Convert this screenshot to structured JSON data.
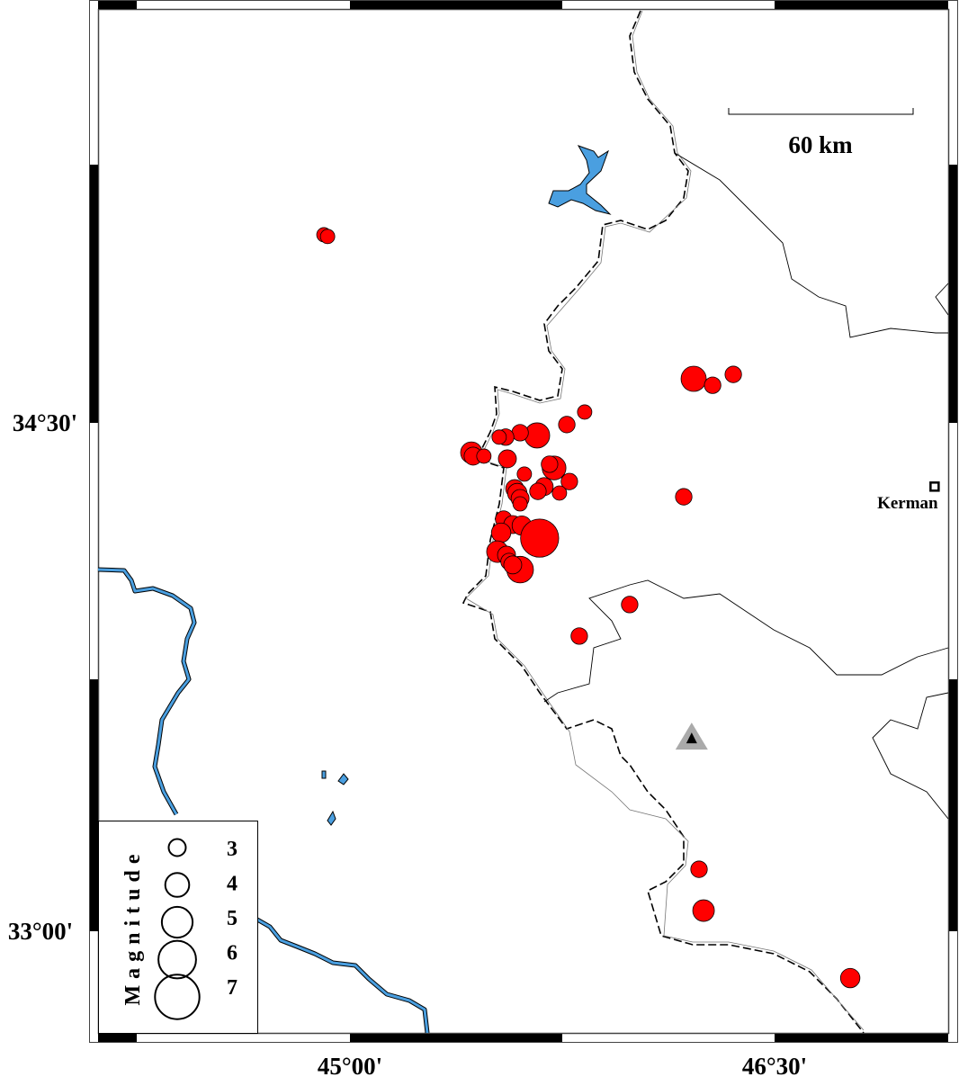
{
  "map": {
    "axes": {
      "lat_labels": [
        {
          "lat": 34.5,
          "text": "34°30'"
        },
        {
          "lat": 33.0,
          "text": "33°00'"
        }
      ],
      "lon_labels": [
        {
          "lon": 45.0,
          "text": "45°00'"
        },
        {
          "lon": 46.5,
          "text": "46°30'"
        }
      ]
    },
    "scale_bar": {
      "label": "60 km",
      "length_km": 60
    },
    "city": {
      "name": "Kerman",
      "lon": 47.065,
      "lat": 34.312,
      "symbol": "square"
    },
    "station": {
      "lon": 46.207,
      "lat": 33.568,
      "symbol": "triangle"
    },
    "legend": {
      "title": "Magnitude",
      "entries": [
        {
          "mag": 3,
          "label": "3"
        },
        {
          "mag": 4,
          "label": "4"
        },
        {
          "mag": 5,
          "label": "5"
        },
        {
          "mag": 6,
          "label": "6"
        },
        {
          "mag": 7,
          "label": "7"
        }
      ]
    },
    "colors": {
      "event_fill": "#ff0000",
      "water": "#4a9fe0",
      "station": "#aaaaaa",
      "border": "#000000"
    },
    "events": [
      [
        44.908,
        35.055,
        2.5
      ],
      [
        44.921,
        35.05,
        2.5
      ],
      [
        46.214,
        34.63,
        4.0
      ],
      [
        46.281,
        34.611,
        2.8
      ],
      [
        46.354,
        34.643,
        2.8
      ],
      [
        45.829,
        34.532,
        2.5
      ],
      [
        45.766,
        34.495,
        2.8
      ],
      [
        45.661,
        34.463,
        4.0
      ],
      [
        45.601,
        34.471,
        2.8
      ],
      [
        45.55,
        34.458,
        2.8
      ],
      [
        45.527,
        34.458,
        2.5
      ],
      [
        45.429,
        34.412,
        3.5
      ],
      [
        45.435,
        34.402,
        3.0
      ],
      [
        45.473,
        34.402,
        2.5
      ],
      [
        45.556,
        34.394,
        3.0
      ],
      [
        45.721,
        34.367,
        3.8
      ],
      [
        45.705,
        34.378,
        2.8
      ],
      [
        45.616,
        34.349,
        2.5
      ],
      [
        45.775,
        34.327,
        2.8
      ],
      [
        45.74,
        34.293,
        2.5
      ],
      [
        45.686,
        34.312,
        3.0
      ],
      [
        45.664,
        34.298,
        2.8
      ],
      [
        45.582,
        34.306,
        3.0
      ],
      [
        45.591,
        34.293,
        3.2
      ],
      [
        45.601,
        34.277,
        3.0
      ],
      [
        45.601,
        34.261,
        2.5
      ],
      [
        45.543,
        34.216,
        2.8
      ],
      [
        45.575,
        34.2,
        3.0
      ],
      [
        45.607,
        34.197,
        3.2
      ],
      [
        45.67,
        34.16,
        5.8
      ],
      [
        45.534,
        34.176,
        3.2
      ],
      [
        45.521,
        34.12,
        3.5
      ],
      [
        45.553,
        34.11,
        3.0
      ],
      [
        45.562,
        34.091,
        2.8
      ],
      [
        45.601,
        34.067,
        4.2
      ],
      [
        45.575,
        34.081,
        3.0
      ],
      [
        46.179,
        34.282,
        2.8
      ],
      [
        45.988,
        33.964,
        2.8
      ],
      [
        45.81,
        33.871,
        2.8
      ],
      [
        46.233,
        33.183,
        2.8
      ],
      [
        46.249,
        33.061,
        3.5
      ],
      [
        46.767,
        32.862,
        3.2
      ]
    ]
  }
}
